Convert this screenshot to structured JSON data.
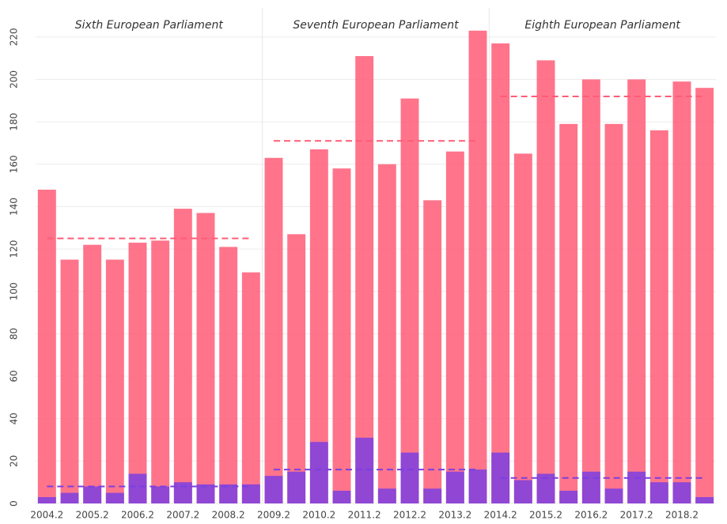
{
  "chart_data": {
    "type": "bar",
    "categories": [
      "2004.2",
      null,
      "2005.2",
      null,
      "2006.2",
      null,
      "2007.2",
      null,
      "2008.2",
      null,
      "2009.2",
      null,
      "2010.2",
      null,
      "2011.2",
      null,
      "2012.2",
      null,
      "2013.2",
      null,
      "2014.2",
      null,
      "2015.2",
      null,
      "2016.2",
      null,
      "2017.2",
      null,
      "2018.2",
      null
    ],
    "series": [
      {
        "color": "#ff5c77",
        "values": [
          148,
          115,
          122,
          115,
          123,
          124,
          139,
          137,
          121,
          109,
          163,
          127,
          167,
          158,
          211,
          160,
          191,
          143,
          166,
          223,
          217,
          165,
          209,
          179,
          200,
          179,
          200,
          176,
          199,
          196
        ]
      },
      {
        "color": "#7b3fe0",
        "values": [
          3,
          5,
          8,
          5,
          14,
          8,
          10,
          9,
          9,
          9,
          13,
          15,
          29,
          6,
          31,
          7,
          24,
          7,
          15,
          16,
          24,
          11,
          14,
          6,
          15,
          7,
          15,
          10,
          10,
          3
        ]
      }
    ],
    "periods": [
      {
        "name": "Sixth European Parliament",
        "start": "2004.2",
        "means": [
          125,
          8
        ]
      },
      {
        "name": "Seventh European Parliament",
        "start": "2009.2",
        "means": [
          171,
          16
        ]
      },
      {
        "name": "Eighth European Parliament",
        "start": "2014.2",
        "means": [
          192,
          12
        ]
      }
    ],
    "ylim": [
      0,
      230
    ],
    "yticks": [
      0,
      20,
      40,
      60,
      80,
      100,
      120,
      140,
      160,
      180,
      200,
      220
    ],
    "grid": true
  }
}
